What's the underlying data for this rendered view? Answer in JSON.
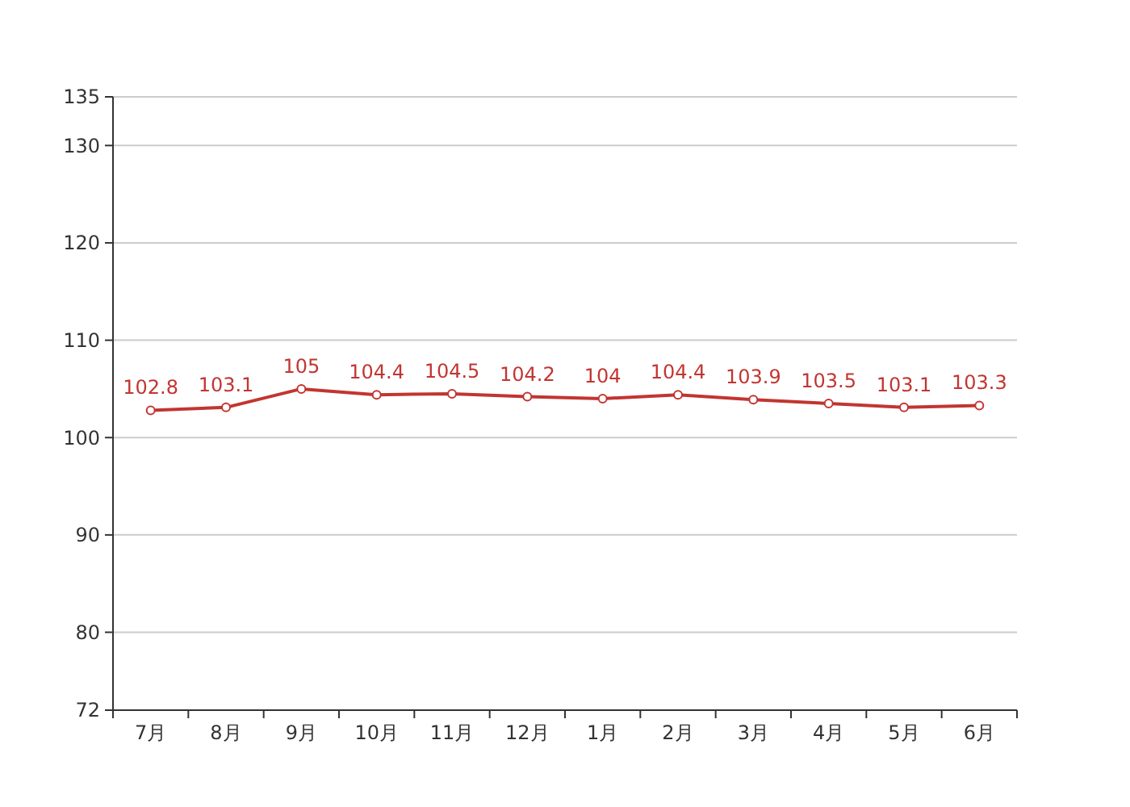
{
  "chart_data": {
    "type": "line",
    "categories": [
      "7月",
      "8月",
      "9月",
      "10月",
      "11月",
      "12月",
      "1月",
      "2月",
      "3月",
      "4月",
      "5月",
      "6月"
    ],
    "series": [
      {
        "color": "#c23531",
        "values": [
          102.8,
          103.1,
          105,
          104.4,
          104.5,
          104.2,
          104,
          104.4,
          103.9,
          103.5,
          103.1,
          103.3
        ]
      }
    ],
    "ylim": [
      72,
      135
    ],
    "yticks": [
      72,
      80,
      90,
      100,
      110,
      120,
      130,
      135
    ],
    "grid": "y",
    "data_labels": true,
    "marker": "circle",
    "line_style": "solid"
  }
}
